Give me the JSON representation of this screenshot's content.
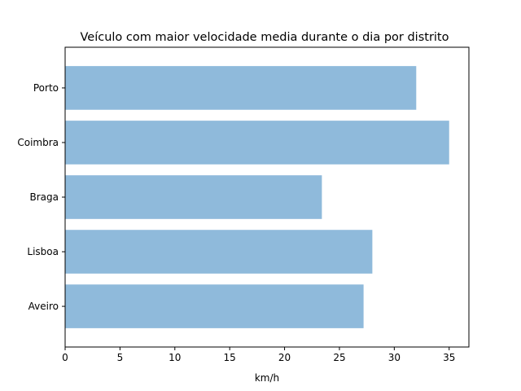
{
  "chart_data": {
    "type": "bar",
    "orientation": "horizontal",
    "title": "Veículo com maior velocidade media durante o dia por distrito",
    "xlabel": "km/h",
    "ylabel": "",
    "categories": [
      "Aveiro",
      "Lisboa",
      "Braga",
      "Coimbra",
      "Porto"
    ],
    "values": [
      27.2,
      28.0,
      23.4,
      35.0,
      32.0
    ],
    "xlim": [
      0,
      36.8
    ],
    "xticks": [
      0,
      5,
      10,
      15,
      20,
      25,
      30,
      35
    ],
    "xtick_labels": [
      "0",
      "5",
      "10",
      "15",
      "20",
      "25",
      "30",
      "35"
    ],
    "bar_color": "#8fbadb",
    "grid": false,
    "legend": "none"
  }
}
